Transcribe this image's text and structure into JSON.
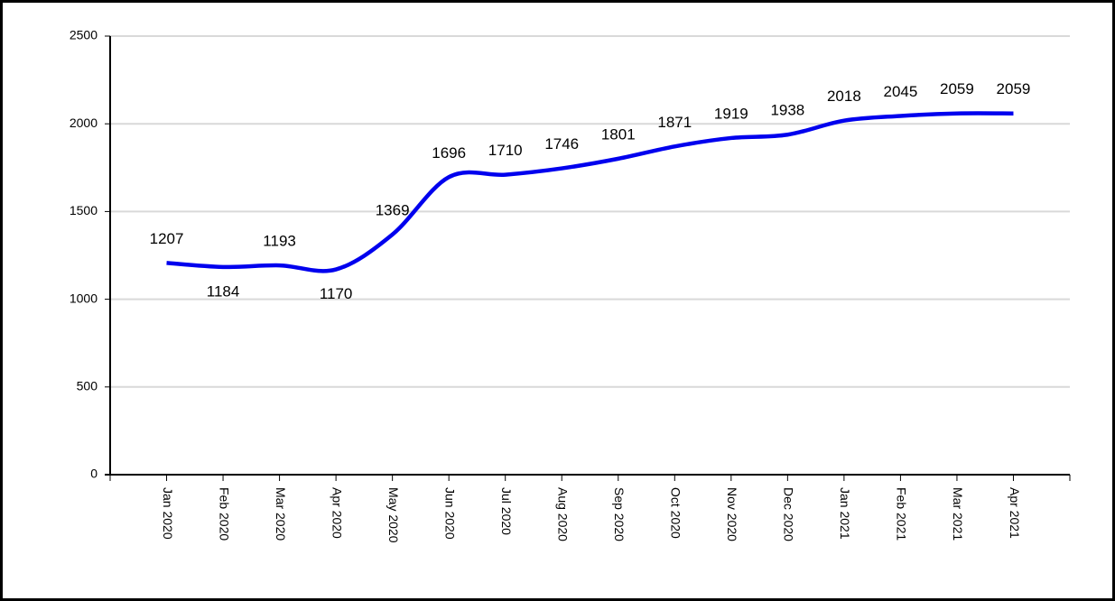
{
  "chart_data": {
    "type": "line",
    "categories": [
      "Jan 2020",
      "Feb 2020",
      "Mar 2020",
      "Apr 2020",
      "May 2020",
      "Jun 2020",
      "Jul 2020",
      "Aug 2020",
      "Sep 2020",
      "Oct 2020",
      "Nov 2020",
      "Dec 2020",
      "Jan 2021",
      "Feb 2021",
      "Mar 2021",
      "Apr 2021"
    ],
    "series": [
      {
        "color": "#0000ee",
        "values": [
          1207,
          1184,
          1193,
          1170,
          1369,
          1696,
          1710,
          1746,
          1801,
          1871,
          1919,
          1938,
          2018,
          2045,
          2059,
          2059
        ]
      }
    ],
    "ylim": [
      0,
      2500
    ],
    "yticks": [
      0,
      500,
      1000,
      1500,
      2000,
      2500
    ],
    "grid": true
  }
}
